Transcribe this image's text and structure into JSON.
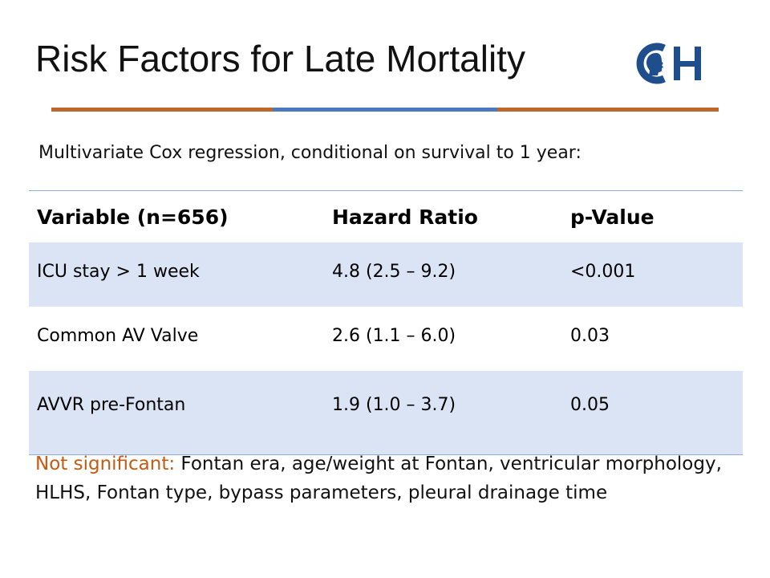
{
  "slide": {
    "title": "Risk Factors for Late Mortality",
    "logo_text": "CH",
    "subtitle": "Multivariate Cox regression, conditional on survival to 1 year:"
  },
  "table": {
    "headers": [
      "Variable (n=656)",
      "Hazard Ratio",
      "p-Value"
    ],
    "rows": [
      [
        "ICU stay > 1 week",
        "4.8 (2.5 – 9.2)",
        "<0.001"
      ],
      [
        "Common AV Valve",
        "2.6 (1.1 – 6.0)",
        "0.03"
      ],
      [
        "AVVR pre-Fontan",
        "1.9 (1.0 – 3.7)",
        "0.05"
      ]
    ]
  },
  "notes": {
    "lead": "Not significant:",
    "text": " Fontan era, age/weight at Fontan, ventricular morphology, HLHS, Fontan type, bypass parameters, pleural drainage time"
  },
  "colors": {
    "accent_orange": "#c0662a",
    "accent_blue": "#4a79c2",
    "logo_blue": "#1f4e8c",
    "row_shade": "#dbe4f5",
    "lead_text": "#c55a11"
  }
}
